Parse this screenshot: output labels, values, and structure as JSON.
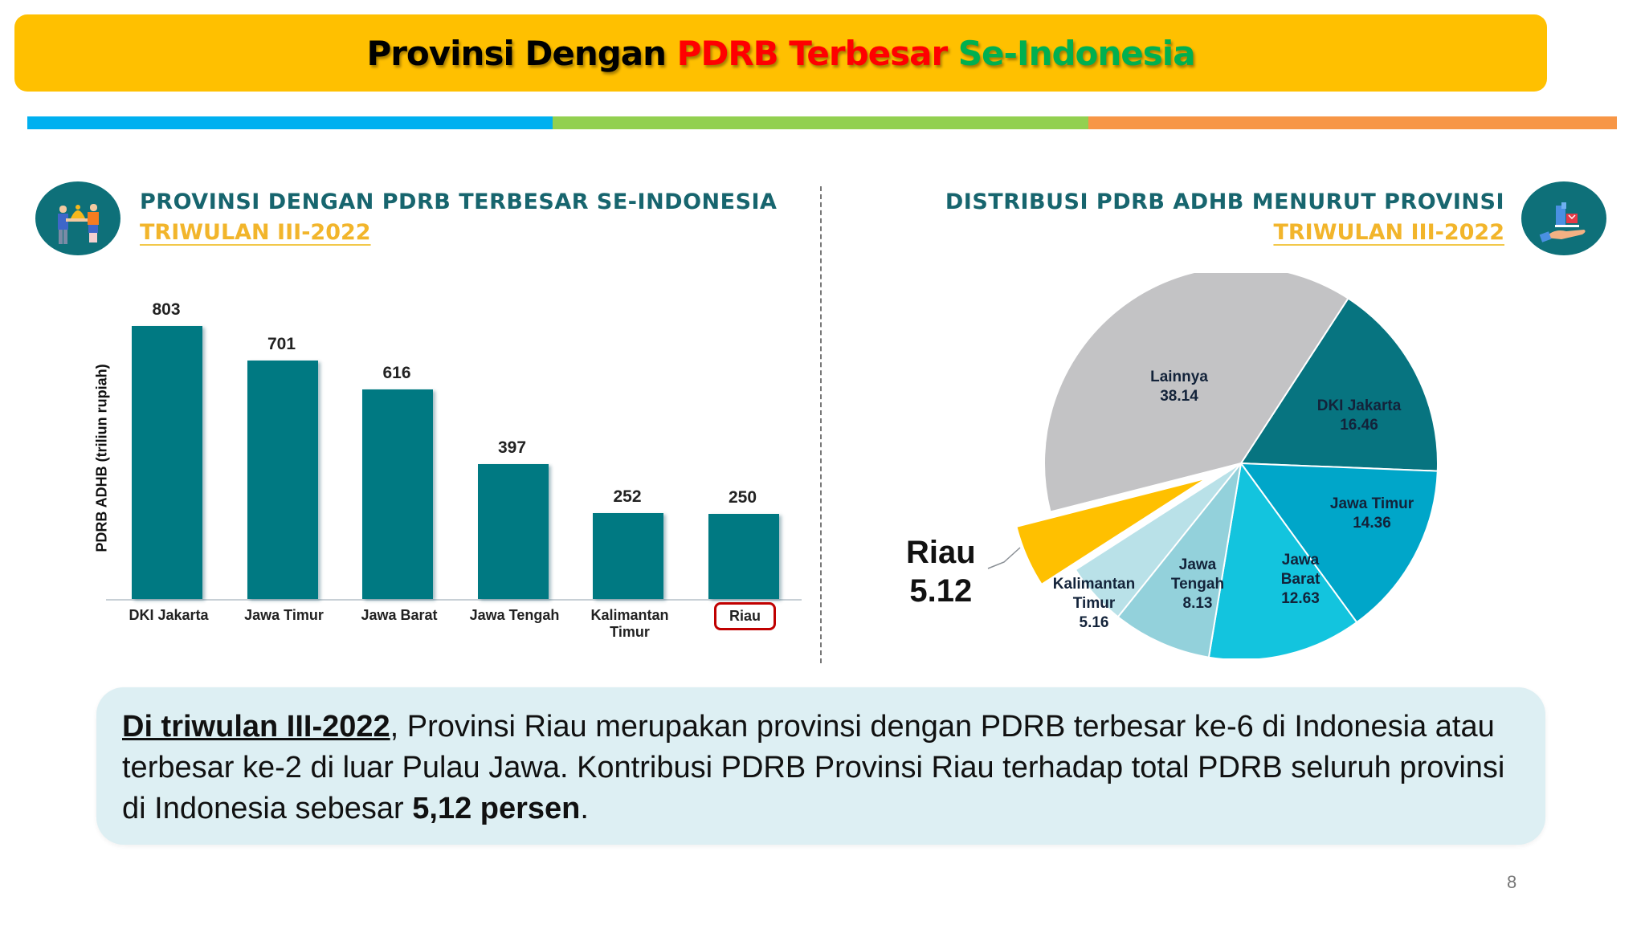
{
  "slide": {
    "title": {
      "part1": "Provinsi Dengan",
      "part2": "PDRB Terbesar",
      "part3": "Se-Indonesia"
    },
    "colors": {
      "title_bg": "#FFC000",
      "title_black": "#000000",
      "title_red": "#FF0000",
      "title_green": "#00B050",
      "stripe_blue": "#00B0F0",
      "stripe_green": "#92D050",
      "stripe_orange": "#F79646",
      "bar_color": "#007982",
      "highlight": "#C00000"
    },
    "page_number": "8"
  },
  "left_panel": {
    "icon": "people-sharing-icon",
    "title": "PROVINSI DENGAN PDRB TERBESAR SE-INDONESIA",
    "subtitle": "TRIWULAN III-2022"
  },
  "right_panel": {
    "icon": "hand-holding-box-icon",
    "title": "DISTRIBUSI PDRB ADHB MENURUT PROVINSI",
    "subtitle": "TRIWULAN III-2022"
  },
  "chart_data": [
    {
      "type": "bar",
      "title": "PROVINSI DENGAN PDRB TERBESAR SE-INDONESIA TRIWULAN III-2022",
      "xlabel": "",
      "ylabel": "PDRB ADHB (triliun rupiah)",
      "categories": [
        "DKI Jakarta",
        "Jawa Timur",
        "Jawa Barat",
        "Jawa Tengah",
        "Kalimantan Timur",
        "Riau"
      ],
      "category_lines": [
        [
          "DKI Jakarta"
        ],
        [
          "Jawa Timur"
        ],
        [
          "Jawa Barat"
        ],
        [
          "Jawa Tengah"
        ],
        [
          "Kalimantan",
          "Timur"
        ],
        [
          "Riau"
        ]
      ],
      "values": [
        803,
        701,
        616,
        397,
        252,
        250
      ],
      "value_labels": [
        "803",
        "701",
        "616",
        "397",
        "252",
        "250"
      ],
      "highlighted_category": "Riau",
      "ylim": [
        0,
        850
      ],
      "grid": false,
      "legend": null
    },
    {
      "type": "pie",
      "title": "DISTRIBUSI PDRB ADHB MENURUT PROVINSI TRIWULAN III-2022",
      "unit": "persen",
      "start_angle_deg": 33,
      "slices": [
        {
          "label": "DKI Jakarta",
          "lines": [
            "DKI Jakarta"
          ],
          "value": 16.46,
          "display": "16.46",
          "color": "#077480"
        },
        {
          "label": "Jawa Timur",
          "lines": [
            "Jawa Timur"
          ],
          "value": 14.36,
          "display": "14.36",
          "color": "#00A6C9"
        },
        {
          "label": "Jawa Barat",
          "lines": [
            "Jawa",
            "Barat"
          ],
          "value": 12.63,
          "display": "12.63",
          "color": "#13C4DE"
        },
        {
          "label": "Jawa Tengah",
          "lines": [
            "Jawa",
            "Tengah"
          ],
          "value": 8.13,
          "display": "8.13",
          "color": "#93D1DB"
        },
        {
          "label": "Kalimantan Timur",
          "lines": [
            "Kalimantan",
            "Timur"
          ],
          "value": 5.16,
          "display": "5.16",
          "color": "#B9E1E8"
        },
        {
          "label": "Riau",
          "lines": [
            "Riau"
          ],
          "value": 5.12,
          "display": "5.12",
          "color": "#FFC000",
          "exploded": true
        },
        {
          "label": "Lainnya",
          "lines": [
            "Lainnya"
          ],
          "value": 38.14,
          "display": "38.14",
          "color": "#C3C3C5"
        }
      ],
      "callout": {
        "label": "Riau",
        "value": "5.12"
      },
      "legend": null
    }
  ],
  "summary": {
    "lead": "Di triwulan III-2022",
    "text1": ", Provinsi Riau merupakan provinsi dengan PDRB terbesar ke-6 di Indonesia atau terbesar ke-2 di luar Pulau Jawa. Kontribusi PDRB Provinsi Riau terhadap total PDRB seluruh provinsi di Indonesia sebesar ",
    "bold": "5,12 persen",
    "text2": "."
  }
}
